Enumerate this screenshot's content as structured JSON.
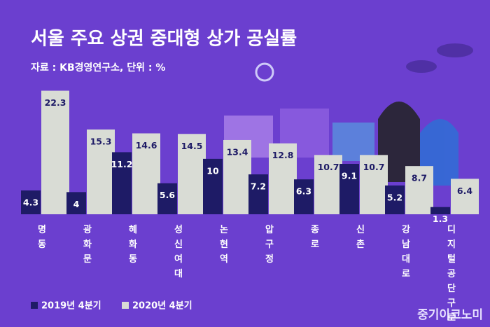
{
  "chart_data": {
    "type": "bar",
    "title": "서울 주요 상권 중대형 상가 공실률",
    "subtitle": "자료 : KB경영연구소, 단위 : %",
    "source": "중기이코노미",
    "categories": [
      "명동",
      "광화문",
      "혜화동",
      "성신여대",
      "논현역",
      "압구정",
      "종로",
      "신촌",
      "강남대로",
      "디지털공단 구로"
    ],
    "series": [
      {
        "name": "2019년 4분기",
        "color": "#1e1b66",
        "values": [
          4.3,
          4,
          11.2,
          5.6,
          10,
          7.2,
          6.3,
          9.1,
          5.2,
          1.3
        ]
      },
      {
        "name": "2020년 4분기",
        "color": "#d9dcd5",
        "values": [
          22.3,
          15.3,
          14.6,
          14.5,
          13.4,
          12.8,
          10.7,
          10.7,
          8.7,
          6.4
        ]
      }
    ],
    "ylim": [
      0,
      23
    ]
  }
}
